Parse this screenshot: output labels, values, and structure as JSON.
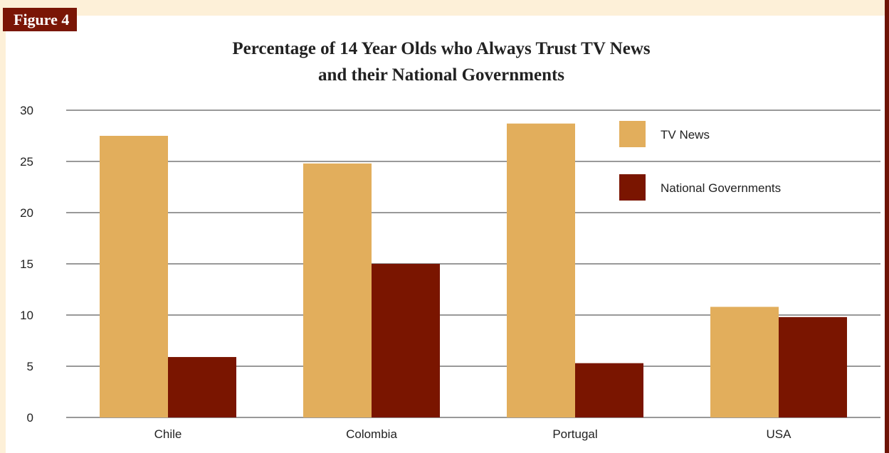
{
  "figure_label": "Figure 4",
  "chart_data": {
    "type": "bar",
    "title_line1": "Percentage of 14 Year Olds who Always Trust TV News",
    "title_line2": "and their National Governments",
    "categories": [
      "Chile",
      "Colombia",
      "Portugal",
      "USA"
    ],
    "series": [
      {
        "name": "TV News",
        "color": "#e2ae5c",
        "values": [
          27.5,
          24.8,
          28.7,
          10.8
        ]
      },
      {
        "name": "National Governments",
        "color": "#7a1500",
        "values": [
          5.9,
          15.0,
          5.3,
          9.8
        ]
      }
    ],
    "yticks": [
      "0",
      "5",
      "10",
      "15",
      "20",
      "25",
      "30"
    ],
    "ylim": [
      0,
      30
    ],
    "grid": true,
    "legend_position": "top-right"
  }
}
